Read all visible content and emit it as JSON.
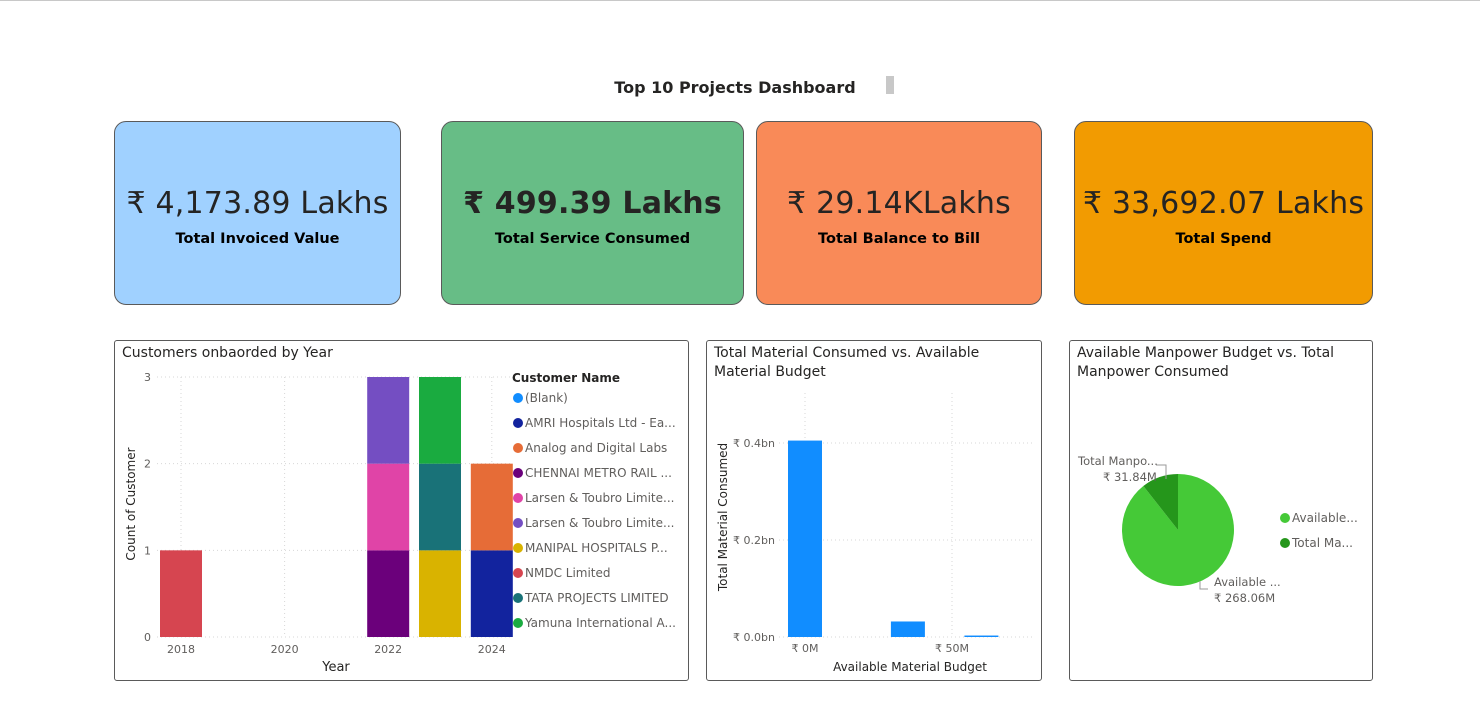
{
  "dashboard": {
    "title": "Top 10 Projects Dashboard"
  },
  "kpis": [
    {
      "value": "₹ 4,173.89 Lakhs",
      "label": "Total Invoiced Value",
      "color": "#a0d1ff"
    },
    {
      "value": "₹ 499.39 Lakhs",
      "label": "Total Service Consumed",
      "color": "#67bd86"
    },
    {
      "value": "₹ 29.14KLakhs",
      "label": "Total Balance to Bill",
      "color": "#f98a58"
    },
    {
      "value": "₹ 33,692.07 Lakhs",
      "label": "Total Spend",
      "color": "#f29b01"
    }
  ],
  "customers_chart": {
    "title": "Customers onbaorded by Year",
    "legend_title": "Customer Name",
    "legend": [
      {
        "name": "(Blank)",
        "color": "#118dff"
      },
      {
        "name": "AMRI Hospitals Ltd - Ea...",
        "color": "#12239e"
      },
      {
        "name": "Analog and Digital Labs",
        "color": "#e66c37"
      },
      {
        "name": "CHENNAI METRO RAIL ...",
        "color": "#6b007b"
      },
      {
        "name": "Larsen & Toubro Limite...",
        "color": "#e044a7"
      },
      {
        "name": "Larsen & Toubro Limite...",
        "color": "#744ec2"
      },
      {
        "name": "MANIPAL HOSPITALS P...",
        "color": "#d9b300"
      },
      {
        "name": "NMDC Limited",
        "color": "#d64550"
      },
      {
        "name": "TATA PROJECTS LIMITED",
        "color": "#197278"
      },
      {
        "name": "Yamuna International A...",
        "color": "#1aab40"
      }
    ]
  },
  "material_chart": {
    "title_line1": "Total Material Consumed vs. Available",
    "title_line2": "Material Budget"
  },
  "manpower_chart": {
    "title_line1": "Available Manpower Budget vs. Total",
    "title_line2": "Manpower Consumed",
    "legend": [
      {
        "name": "Available...",
        "color": "#45c937"
      },
      {
        "name": "Total Ma...",
        "color": "#25961b"
      }
    ]
  },
  "chart_data": [
    {
      "type": "bar",
      "stacked": true,
      "xlabel": "Year",
      "ylabel": "Count of Customer",
      "ylim": [
        0,
        3
      ],
      "yticks": [
        "0",
        "1",
        "2",
        "3"
      ],
      "xticks": [
        "2018",
        "2020",
        "2022",
        "2024"
      ],
      "bars": [
        {
          "year": 2018,
          "segments": [
            {
              "series": "NMDC Limited",
              "value": 1
            }
          ]
        },
        {
          "year": 2022,
          "segments": [
            {
              "series": "CHENNAI METRO RAIL ...",
              "value": 1
            },
            {
              "series": "Larsen & Toubro Limite... (1)",
              "value": 1
            },
            {
              "series": "Larsen & Toubro Limite... (2)",
              "value": 1
            }
          ]
        },
        {
          "year": 2023,
          "segments": [
            {
              "series": "MANIPAL HOSPITALS P...",
              "value": 1
            },
            {
              "series": "TATA PROJECTS LIMITED",
              "value": 1
            },
            {
              "series": "Yamuna International A...",
              "value": 1
            }
          ]
        },
        {
          "year": 2024,
          "segments": [
            {
              "series": "AMRI Hospitals Ltd - Ea...",
              "value": 1
            },
            {
              "series": "Analog and Digital Labs",
              "value": 1
            }
          ]
        }
      ],
      "segment_colors": [
        "#d64550",
        "#6b007b",
        "#e044a7",
        "#744ec2",
        "#d9b300",
        "#197278",
        "#1aab40",
        "#12239e",
        "#e66c37"
      ]
    },
    {
      "type": "bar",
      "xlabel": "Available Material Budget",
      "ylabel": "Total Material Consumed",
      "ylim": [
        0,
        0.48
      ],
      "yticks": [
        "₹ 0.0bn",
        "₹ 0.2bn",
        "₹ 0.4bn"
      ],
      "xticks": [
        "₹ 0M",
        "₹ 50M"
      ],
      "unit_x": "M",
      "unit_y": "bn",
      "points": [
        {
          "x": 0,
          "y": 0.405
        },
        {
          "x": 35,
          "y": 0.032
        },
        {
          "x": 60,
          "y": 0.003
        }
      ],
      "color": "#118dff"
    },
    {
      "type": "pie",
      "slices": [
        {
          "label": "Available ...",
          "value": 268.06,
          "display": "₹ 268.06M",
          "color": "#45c937"
        },
        {
          "label": "Total Manpo...",
          "value": 31.84,
          "display": "₹ 31.84M",
          "color": "#25961b"
        }
      ]
    }
  ]
}
